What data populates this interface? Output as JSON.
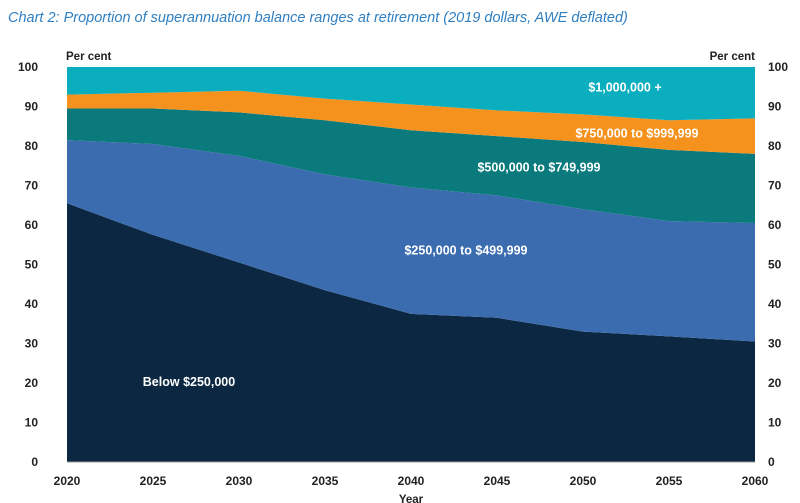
{
  "chart_data": {
    "type": "area",
    "title": "Chart 2: Proportion of superannuation balance ranges at retirement (2019 dollars, AWE deflated)",
    "xlabel": "Year",
    "y_unit_left": "Per cent",
    "y_unit_right": "Per cent",
    "ylim": [
      0,
      100
    ],
    "y_ticks": [
      0,
      10,
      20,
      30,
      40,
      50,
      60,
      70,
      80,
      90,
      100
    ],
    "x": [
      2020,
      2025,
      2030,
      2035,
      2040,
      2045,
      2050,
      2055,
      2060
    ],
    "stacked": true,
    "series": [
      {
        "name": "Below $250,000",
        "color": "#0b2741",
        "label_color": "#ffffff",
        "values": [
          65.5,
          57.5,
          50.5,
          43.5,
          37.5,
          36.5,
          33.0,
          31.8,
          30.5
        ]
      },
      {
        "name": "$250,000 to $499,999",
        "color": "#3b6cb0",
        "label_color": "#ffffff",
        "values": [
          16.0,
          23.0,
          27.0,
          29.3,
          32.0,
          31.0,
          31.0,
          29.2,
          30.0
        ]
      },
      {
        "name": "$500,000 to $749,999",
        "color": "#0a7a7c",
        "label_color": "#ffffff",
        "values": [
          8.0,
          9.0,
          11.0,
          13.7,
          14.5,
          15.0,
          17.0,
          18.0,
          17.5
        ]
      },
      {
        "name": "$750,000 to $999,999",
        "color": "#f5921e",
        "label_color": "#ffffff",
        "values": [
          3.5,
          4.0,
          5.5,
          5.5,
          6.5,
          6.5,
          7.0,
          7.5,
          9.0
        ]
      },
      {
        "name": "$1,000,000 +",
        "color": "#0aaebf",
        "label_color": "#ffffff",
        "values": [
          7.0,
          6.5,
          6.0,
          8.0,
          9.5,
          11.0,
          12.0,
          13.5,
          13.0
        ]
      }
    ],
    "grid": false,
    "legend": "labels inside areas"
  }
}
